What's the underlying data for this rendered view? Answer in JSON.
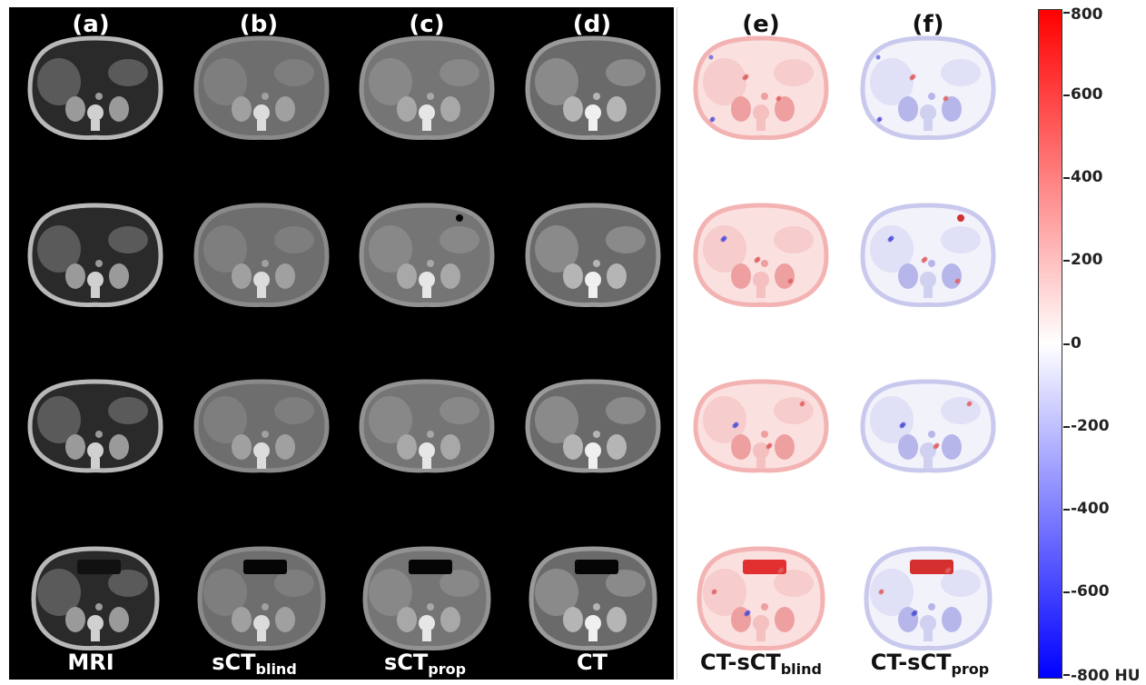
{
  "figure": {
    "columns": [
      {
        "id": "a",
        "label": "(a)",
        "bottom_label": "MRI",
        "bottom_sub": ""
      },
      {
        "id": "b",
        "label": "(b)",
        "bottom_label": "sCT",
        "bottom_sub": "blind"
      },
      {
        "id": "c",
        "label": "(c)",
        "bottom_label": "sCT",
        "bottom_sub": "prop"
      },
      {
        "id": "d",
        "label": "(d)",
        "bottom_label": "CT",
        "bottom_sub": ""
      },
      {
        "id": "e",
        "label": "(e)",
        "bottom_label": "CT-sCT",
        "bottom_sub": "blind"
      },
      {
        "id": "f",
        "label": "(f)",
        "bottom_label": "CT-sCT",
        "bottom_sub": "prop"
      }
    ],
    "colorbar": {
      "ticks": [
        "800",
        "600",
        "400",
        "200",
        "0",
        "-200",
        "-400",
        "-600",
        "-800"
      ],
      "unit": "HU",
      "max_color": "#ff0000",
      "mid_color": "#ffffff",
      "min_color": "#0000ff"
    }
  }
}
